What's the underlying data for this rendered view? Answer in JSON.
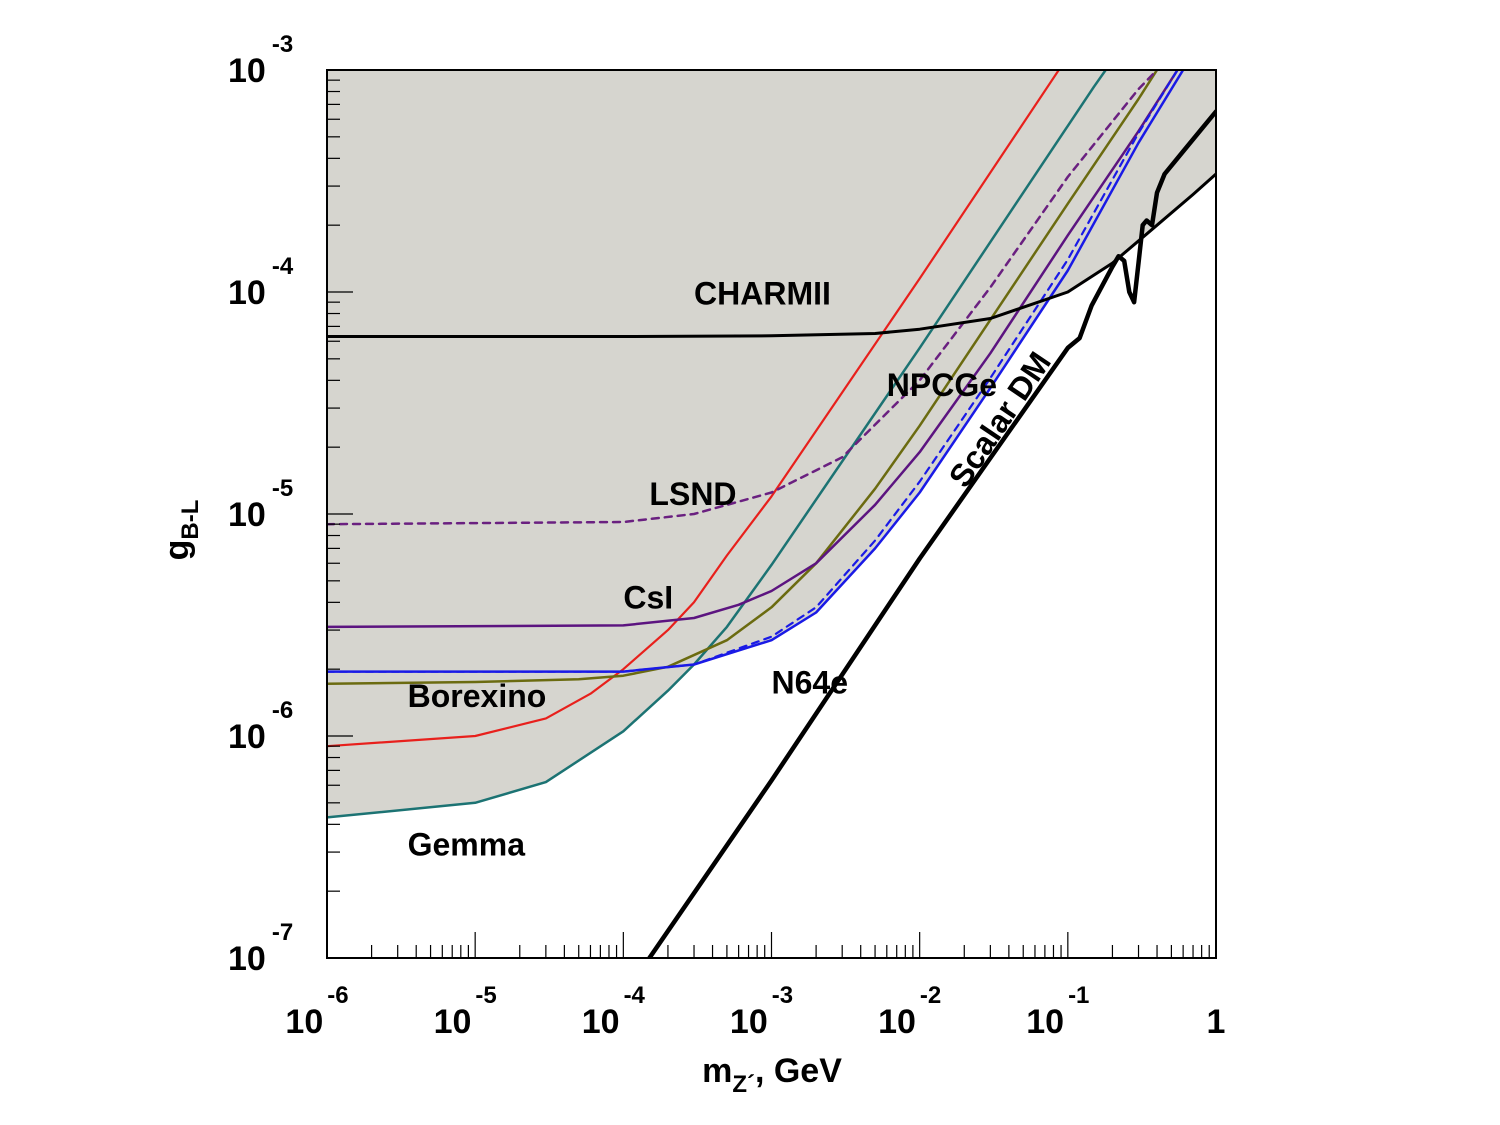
{
  "chart_data": {
    "type": "line",
    "title": "",
    "xlabel": {
      "main": "m",
      "sub": "Z´",
      "suffix": ", GeV"
    },
    "ylabel": {
      "main": "g",
      "sub": "B-L"
    },
    "x_scale": "log",
    "y_scale": "log",
    "xlim": [
      1e-06,
      1
    ],
    "ylim": [
      1e-07,
      0.001
    ],
    "x_ticks": [
      {
        "value": 1e-06,
        "base": "10",
        "exp": "-6"
      },
      {
        "value": 1e-05,
        "base": "10",
        "exp": "-5"
      },
      {
        "value": 0.0001,
        "base": "10",
        "exp": "-4"
      },
      {
        "value": 0.001,
        "base": "10",
        "exp": "-3"
      },
      {
        "value": 0.01,
        "base": "10",
        "exp": "-2"
      },
      {
        "value": 0.1,
        "base": "10",
        "exp": "-1"
      },
      {
        "value": 1,
        "base": "1",
        "exp": ""
      }
    ],
    "y_ticks": [
      {
        "value": 1e-07,
        "base": "10",
        "exp": "-7"
      },
      {
        "value": 1e-06,
        "base": "10",
        "exp": "-6"
      },
      {
        "value": 1e-05,
        "base": "10",
        "exp": "-5"
      },
      {
        "value": 0.0001,
        "base": "10",
        "exp": "-4"
      },
      {
        "value": 0.001,
        "base": "10",
        "exp": "-3"
      }
    ],
    "excluded_region_color": "#d6d5cf",
    "series": [
      {
        "name": "Gemma",
        "color": "#1c7373",
        "style": "solid",
        "width": 2.5,
        "points": [
          [
            1e-06,
            4.3e-07
          ],
          [
            1e-05,
            5e-07
          ],
          [
            3e-05,
            6.2e-07
          ],
          [
            0.0001,
            1.05e-06
          ],
          [
            0.0002,
            1.6e-06
          ],
          [
            0.0003,
            2.1e-06
          ],
          [
            0.0005,
            3.1e-06
          ],
          [
            0.001,
            5.9e-06
          ],
          [
            0.01,
            5.6e-05
          ],
          [
            0.1,
            0.00056
          ],
          [
            0.15,
            0.00084
          ],
          [
            0.18,
            0.001
          ]
        ]
      },
      {
        "name": "NPCGe",
        "color": "#e8201c",
        "style": "solid",
        "width": 2.2,
        "points": [
          [
            1e-06,
            9e-07
          ],
          [
            1e-05,
            1e-06
          ],
          [
            3e-05,
            1.2e-06
          ],
          [
            6e-05,
            1.55e-06
          ],
          [
            0.0001,
            2e-06
          ],
          [
            0.0002,
            3e-06
          ],
          [
            0.0003,
            4e-06
          ],
          [
            0.0005,
            6.5e-06
          ],
          [
            0.001,
            1.2e-05
          ],
          [
            0.01,
            0.000115
          ],
          [
            0.1,
            0.00115
          ]
        ]
      },
      {
        "name": "Borexino",
        "color": "#6b6b10",
        "style": "solid",
        "width": 2.5,
        "points": [
          [
            1e-06,
            1.72e-06
          ],
          [
            1e-05,
            1.75e-06
          ],
          [
            5e-05,
            1.8e-06
          ],
          [
            0.0001,
            1.87e-06
          ],
          [
            0.0002,
            2.05e-06
          ],
          [
            0.0005,
            2.7e-06
          ],
          [
            0.001,
            3.8e-06
          ],
          [
            0.002,
            6e-06
          ],
          [
            0.005,
            1.3e-05
          ],
          [
            0.01,
            2.5e-05
          ],
          [
            0.1,
            0.00025
          ],
          [
            0.3,
            0.00074
          ],
          [
            0.4,
            0.001
          ]
        ]
      },
      {
        "name": "CsI",
        "color": "#5c1480",
        "style": "solid",
        "width": 2.5,
        "points": [
          [
            1e-06,
            3.1e-06
          ],
          [
            0.0001,
            3.15e-06
          ],
          [
            0.0003,
            3.4e-06
          ],
          [
            0.0006,
            3.9e-06
          ],
          [
            0.001,
            4.5e-06
          ],
          [
            0.002,
            6e-06
          ],
          [
            0.005,
            1.1e-05
          ],
          [
            0.01,
            1.9e-05
          ],
          [
            0.03,
            5.3e-05
          ],
          [
            0.1,
            0.00018
          ],
          [
            0.3,
            0.00053
          ],
          [
            0.55,
            0.001
          ]
        ]
      },
      {
        "name": "LSND",
        "color": "#6a2080",
        "style": "dashed",
        "width": 2.5,
        "points": [
          [
            1e-06,
            9e-06
          ],
          [
            0.0001,
            9.2e-06
          ],
          [
            0.0003,
            1e-05
          ],
          [
            0.001,
            1.25e-05
          ],
          [
            0.003,
            1.8e-05
          ],
          [
            0.01,
            4e-05
          ],
          [
            0.03,
            0.000105
          ],
          [
            0.1,
            0.00033
          ],
          [
            0.3,
            0.00082
          ],
          [
            0.4,
            0.001
          ]
        ]
      },
      {
        "name": "N64e",
        "color": "#1a1ae6",
        "style": "solid",
        "width": 2.5,
        "points": [
          [
            1e-06,
            1.95e-06
          ],
          [
            0.0001,
            1.95e-06
          ],
          [
            0.0003,
            2.1e-06
          ],
          [
            0.001,
            2.7e-06
          ],
          [
            0.002,
            3.6e-06
          ],
          [
            0.005,
            7e-06
          ],
          [
            0.01,
            1.25e-05
          ],
          [
            0.03,
            3.7e-05
          ],
          [
            0.1,
            0.000125
          ],
          [
            0.3,
            0.00047
          ],
          [
            0.6,
            0.001
          ]
        ]
      },
      {
        "name": "N64e dashed",
        "color": "#1a1ae6",
        "style": "dashed",
        "width": 2.2,
        "points": [
          [
            1e-06,
            1.95e-06
          ],
          [
            0.0001,
            1.95e-06
          ],
          [
            0.0003,
            2.1e-06
          ],
          [
            0.001,
            2.8e-06
          ],
          [
            0.002,
            3.8e-06
          ],
          [
            0.005,
            7.6e-06
          ],
          [
            0.01,
            1.4e-05
          ],
          [
            0.03,
            4.1e-05
          ],
          [
            0.1,
            0.00014
          ],
          [
            0.3,
            0.00052
          ],
          [
            0.55,
            0.001
          ]
        ]
      },
      {
        "name": "CHARMII",
        "color": "#000000",
        "style": "solid",
        "width": 3,
        "points": [
          [
            1e-06,
            6.3e-05
          ],
          [
            0.0001,
            6.3e-05
          ],
          [
            0.001,
            6.35e-05
          ],
          [
            0.005,
            6.5e-05
          ],
          [
            0.01,
            6.8e-05
          ],
          [
            0.03,
            7.6e-05
          ],
          [
            0.1,
            0.0001
          ],
          [
            0.2,
            0.000135
          ],
          [
            0.4,
            0.0002
          ],
          [
            0.7,
            0.000275
          ],
          [
            1,
            0.00034
          ]
        ]
      },
      {
        "name": "Scalar DM",
        "color": "#000000",
        "style": "solid",
        "width": 4.5,
        "points": [
          [
            0.00015,
            1e-07
          ],
          [
            0.001,
            6.3e-07
          ],
          [
            0.01,
            6.3e-06
          ],
          [
            0.1,
            5.6e-05
          ],
          [
            0.12,
            6.2e-05
          ],
          [
            0.145,
            8.7e-05
          ],
          [
            0.2,
            0.00013
          ],
          [
            0.22,
            0.000145
          ],
          [
            0.24,
            0.000138
          ],
          [
            0.26,
            0.0001
          ],
          [
            0.28,
            9e-05
          ],
          [
            0.3,
            0.000135
          ],
          [
            0.32,
            0.0002
          ],
          [
            0.34,
            0.00021
          ],
          [
            0.37,
            0.0002
          ],
          [
            0.4,
            0.00028
          ],
          [
            0.45,
            0.00034
          ],
          [
            0.6,
            0.00043
          ],
          [
            1,
            0.00065
          ]
        ]
      }
    ],
    "labels": [
      {
        "text": "CHARMII",
        "x": 0.0003,
        "y": 8.8e-05
      },
      {
        "text": "NPCGe",
        "x": 0.006,
        "y": 3.4e-05
      },
      {
        "text": "LSND",
        "x": 0.00015,
        "y": 1.1e-05
      },
      {
        "text": "CsI",
        "x": 0.0001,
        "y": 3.75e-06
      },
      {
        "text": "Borexino",
        "x": 3.5e-06,
        "y": 1.35e-06
      },
      {
        "text": "N64e",
        "x": 0.001,
        "y": 1.55e-06
      },
      {
        "text": "Gemma",
        "x": 3.5e-06,
        "y": 2.9e-07
      },
      {
        "text": "Scalar DM",
        "x": 0.04,
        "y": 2.5e-05,
        "angle": -56
      }
    ]
  }
}
